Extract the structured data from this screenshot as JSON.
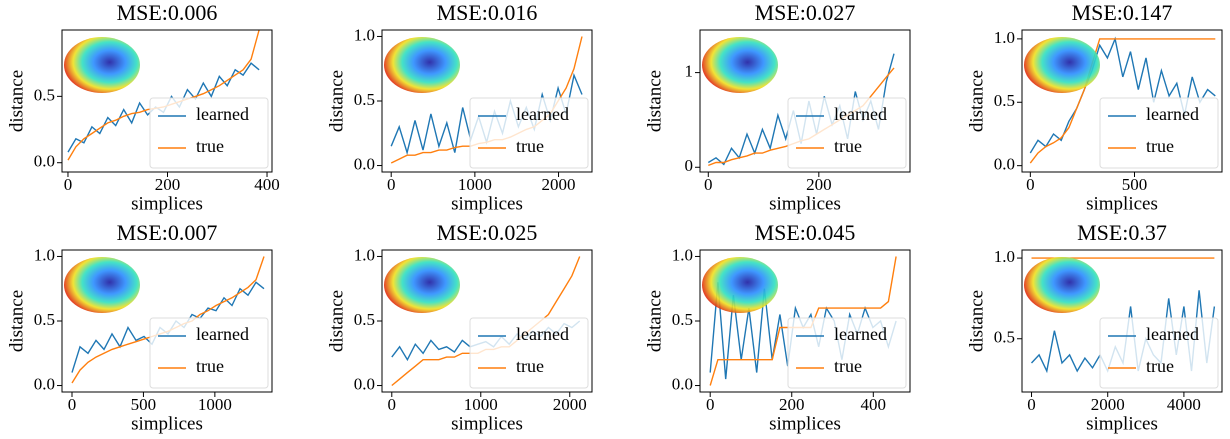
{
  "chart_data": [
    {
      "type": "line",
      "title": "MSE:0.006",
      "xlabel": "simplices",
      "ylabel": "distance",
      "legend": "lower right",
      "grid": false,
      "xlim": [
        -12,
        410
      ],
      "ylim": [
        -0.07,
        1.0
      ],
      "xticks": [
        0,
        200,
        400
      ],
      "yticks": [
        {
          "value": 0,
          "label": "0.0"
        },
        0.5
      ],
      "x": [
        0,
        16,
        32,
        48,
        64,
        80,
        96,
        112,
        128,
        144,
        160,
        176,
        192,
        208,
        224,
        240,
        256,
        272,
        288,
        304,
        320,
        336,
        352,
        368,
        384
      ],
      "series": [
        {
          "name": "learned",
          "color": "#1f77b4",
          "values": [
            0.08,
            0.18,
            0.15,
            0.27,
            0.22,
            0.34,
            0.28,
            0.4,
            0.3,
            0.45,
            0.36,
            0.42,
            0.38,
            0.5,
            0.42,
            0.55,
            0.48,
            0.6,
            0.5,
            0.65,
            0.58,
            0.7,
            0.66,
            0.75,
            0.7
          ]
        },
        {
          "name": "true",
          "color": "#ff7f0e",
          "values": [
            0.02,
            0.12,
            0.18,
            0.22,
            0.26,
            0.3,
            0.32,
            0.35,
            0.37,
            0.38,
            0.4,
            0.41,
            0.42,
            0.44,
            0.46,
            0.48,
            0.5,
            0.52,
            0.55,
            0.58,
            0.62,
            0.66,
            0.7,
            0.78,
            1.0
          ]
        }
      ]
    },
    {
      "type": "line",
      "title": "MSE:0.016",
      "xlabel": "simplices",
      "ylabel": "distance",
      "legend": "lower right",
      "grid": false,
      "xlim": [
        -110,
        2400
      ],
      "ylim": [
        -0.05,
        1.05
      ],
      "xticks": [
        0,
        1000,
        2000
      ],
      "yticks": [
        {
          "value": 0,
          "label": "0.0"
        },
        0.5,
        {
          "value": 1,
          "label": "1.0"
        }
      ],
      "x": [
        0,
        95,
        190,
        285,
        380,
        475,
        570,
        665,
        760,
        855,
        950,
        1045,
        1140,
        1235,
        1330,
        1425,
        1520,
        1615,
        1710,
        1805,
        1900,
        1995,
        2090,
        2185,
        2280
      ],
      "series": [
        {
          "name": "learned",
          "color": "#1f77b4",
          "values": [
            0.15,
            0.3,
            0.1,
            0.35,
            0.12,
            0.4,
            0.15,
            0.33,
            0.1,
            0.45,
            0.2,
            0.38,
            0.18,
            0.42,
            0.25,
            0.5,
            0.3,
            0.45,
            0.28,
            0.55,
            0.35,
            0.6,
            0.4,
            0.7,
            0.55
          ]
        },
        {
          "name": "true",
          "color": "#ff7f0e",
          "values": [
            0.02,
            0.05,
            0.08,
            0.08,
            0.1,
            0.1,
            0.12,
            0.12,
            0.14,
            0.15,
            0.15,
            0.17,
            0.18,
            0.2,
            0.2,
            0.22,
            0.25,
            0.28,
            0.3,
            0.35,
            0.4,
            0.5,
            0.6,
            0.75,
            1.0
          ]
        }
      ]
    },
    {
      "type": "line",
      "title": "MSE:0.027",
      "xlabel": "simplices",
      "ylabel": "distance",
      "legend": "lower right",
      "grid": false,
      "xlim": [
        -15,
        365
      ],
      "ylim": [
        -0.05,
        1.45
      ],
      "xticks": [
        0,
        200
      ],
      "yticks": [
        0,
        1
      ],
      "x": [
        0,
        14,
        28,
        42,
        56,
        70,
        84,
        98,
        112,
        126,
        140,
        154,
        168,
        182,
        196,
        210,
        224,
        238,
        252,
        266,
        280,
        294,
        308,
        322,
        336
      ],
      "series": [
        {
          "name": "learned",
          "color": "#1f77b4",
          "values": [
            0.05,
            0.1,
            0.03,
            0.2,
            0.1,
            0.35,
            0.15,
            0.4,
            0.2,
            0.55,
            0.3,
            0.6,
            0.25,
            0.7,
            0.35,
            0.75,
            0.45,
            0.65,
            0.3,
            0.8,
            0.5,
            0.7,
            0.4,
            0.9,
            1.2
          ]
        },
        {
          "name": "true",
          "color": "#ff7f0e",
          "values": [
            0.02,
            0.05,
            0.05,
            0.08,
            0.1,
            0.12,
            0.15,
            0.15,
            0.18,
            0.2,
            0.22,
            0.25,
            0.28,
            0.3,
            0.35,
            0.4,
            0.45,
            0.5,
            0.55,
            0.6,
            0.65,
            0.75,
            0.85,
            0.95,
            1.05
          ]
        }
      ]
    },
    {
      "type": "line",
      "title": "MSE:0.147",
      "xlabel": "simplices",
      "ylabel": "distance",
      "legend": "lower right",
      "grid": false,
      "xlim": [
        -40,
        920
      ],
      "ylim": [
        -0.05,
        1.07
      ],
      "xticks": [
        0,
        500
      ],
      "yticks": [
        {
          "value": 0,
          "label": "0.0"
        },
        0.5,
        {
          "value": 1,
          "label": "1.0"
        }
      ],
      "x": [
        0,
        37,
        74,
        111,
        148,
        185,
        222,
        259,
        296,
        333,
        370,
        407,
        444,
        481,
        518,
        555,
        592,
        629,
        666,
        703,
        740,
        777,
        814,
        851,
        888
      ],
      "series": [
        {
          "name": "learned",
          "color": "#1f77b4",
          "values": [
            0.1,
            0.2,
            0.15,
            0.25,
            0.2,
            0.35,
            0.45,
            0.6,
            0.75,
            0.95,
            0.85,
            1.0,
            0.7,
            0.9,
            0.6,
            0.85,
            0.5,
            0.75,
            0.55,
            0.65,
            0.4,
            0.7,
            0.5,
            0.6,
            0.55
          ]
        },
        {
          "name": "true",
          "color": "#ff7f0e",
          "values": [
            0.02,
            0.1,
            0.15,
            0.18,
            0.22,
            0.3,
            0.45,
            0.6,
            0.8,
            1.0,
            1.0,
            1.0,
            1.0,
            1.0,
            1.0,
            1.0,
            1.0,
            1.0,
            1.0,
            1.0,
            1.0,
            1.0,
            1.0,
            1.0,
            1.0
          ]
        }
      ]
    },
    {
      "type": "line",
      "title": "MSE:0.007",
      "xlabel": "simplices",
      "ylabel": "distance",
      "legend": "lower right",
      "grid": false,
      "xlim": [
        -70,
        1400
      ],
      "ylim": [
        -0.05,
        1.05
      ],
      "xticks": [
        0,
        500,
        1000
      ],
      "yticks": [
        {
          "value": 0,
          "label": "0.0"
        },
        0.5,
        {
          "value": 1,
          "label": "1.0"
        }
      ],
      "x": [
        0,
        56,
        112,
        168,
        224,
        280,
        336,
        392,
        448,
        504,
        560,
        616,
        672,
        728,
        784,
        840,
        896,
        952,
        1008,
        1064,
        1120,
        1176,
        1232,
        1288,
        1344
      ],
      "series": [
        {
          "name": "learned",
          "color": "#1f77b4",
          "values": [
            0.1,
            0.3,
            0.25,
            0.35,
            0.28,
            0.4,
            0.3,
            0.45,
            0.35,
            0.38,
            0.32,
            0.45,
            0.4,
            0.5,
            0.45,
            0.55,
            0.52,
            0.6,
            0.58,
            0.68,
            0.62,
            0.75,
            0.7,
            0.8,
            0.75
          ]
        },
        {
          "name": "true",
          "color": "#ff7f0e",
          "values": [
            0.02,
            0.12,
            0.18,
            0.22,
            0.25,
            0.28,
            0.3,
            0.32,
            0.34,
            0.36,
            0.38,
            0.4,
            0.42,
            0.45,
            0.48,
            0.5,
            0.55,
            0.58,
            0.62,
            0.65,
            0.68,
            0.72,
            0.76,
            0.82,
            1.0
          ]
        }
      ]
    },
    {
      "type": "line",
      "title": "MSE:0.025",
      "xlabel": "simplices",
      "ylabel": "distance",
      "legend": "lower right",
      "grid": false,
      "xlim": [
        -110,
        2250
      ],
      "ylim": [
        -0.05,
        1.05
      ],
      "xticks": [
        0,
        1000,
        2000
      ],
      "yticks": [
        {
          "value": 0,
          "label": "0.0"
        },
        0.5,
        {
          "value": 1,
          "label": "1.0"
        }
      ],
      "x": [
        0,
        88,
        176,
        264,
        352,
        440,
        528,
        616,
        704,
        792,
        880,
        968,
        1056,
        1144,
        1232,
        1320,
        1408,
        1496,
        1584,
        1672,
        1760,
        1848,
        1936,
        2024,
        2112
      ],
      "series": [
        {
          "name": "learned",
          "color": "#1f77b4",
          "values": [
            0.22,
            0.3,
            0.2,
            0.32,
            0.25,
            0.35,
            0.28,
            0.3,
            0.26,
            0.35,
            0.3,
            0.32,
            0.34,
            0.3,
            0.38,
            0.32,
            0.4,
            0.36,
            0.42,
            0.38,
            0.45,
            0.4,
            0.48,
            0.45,
            0.5
          ]
        },
        {
          "name": "true",
          "color": "#ff7f0e",
          "values": [
            0.0,
            0.05,
            0.1,
            0.15,
            0.2,
            0.2,
            0.2,
            0.22,
            0.22,
            0.25,
            0.25,
            0.25,
            0.28,
            0.28,
            0.3,
            0.3,
            0.35,
            0.4,
            0.45,
            0.5,
            0.55,
            0.65,
            0.75,
            0.85,
            1.0
          ]
        }
      ]
    },
    {
      "type": "line",
      "title": "MSE:0.045",
      "xlabel": "simplices",
      "ylabel": "distance",
      "legend": "lower right",
      "grid": false,
      "xlim": [
        -25,
        490
      ],
      "ylim": [
        -0.05,
        1.05
      ],
      "xticks": [
        0,
        200,
        400
      ],
      "yticks": [
        {
          "value": 0,
          "label": "0.0"
        },
        0.5,
        {
          "value": 1,
          "label": "1.0"
        }
      ],
      "x": [
        0,
        19,
        38,
        57,
        76,
        95,
        114,
        133,
        152,
        171,
        190,
        209,
        228,
        247,
        266,
        285,
        304,
        323,
        342,
        361,
        380,
        399,
        418,
        437,
        456
      ],
      "series": [
        {
          "name": "learned",
          "color": "#1f77b4",
          "values": [
            0.1,
            0.8,
            0.05,
            0.7,
            0.2,
            0.6,
            0.1,
            0.75,
            0.2,
            0.55,
            0.15,
            0.6,
            0.45,
            0.55,
            0.3,
            0.6,
            0.5,
            0.2,
            0.55,
            0.4,
            0.6,
            0.45,
            0.5,
            0.3,
            0.5
          ]
        },
        {
          "name": "true",
          "color": "#ff7f0e",
          "values": [
            0.0,
            0.2,
            0.2,
            0.2,
            0.2,
            0.2,
            0.2,
            0.2,
            0.2,
            0.45,
            0.45,
            0.45,
            0.45,
            0.45,
            0.6,
            0.6,
            0.6,
            0.6,
            0.6,
            0.6,
            0.6,
            0.6,
            0.6,
            0.65,
            1.0
          ]
        }
      ]
    },
    {
      "type": "line",
      "title": "MSE:0.37",
      "xlabel": "simplices",
      "ylabel": "distance",
      "legend": "lower right",
      "grid": false,
      "xlim": [
        -250,
        5000
      ],
      "ylim": [
        0.17,
        1.05
      ],
      "xticks": [
        0,
        2000,
        4000
      ],
      "yticks": [
        0.5,
        {
          "value": 1,
          "label": "1.0"
        }
      ],
      "x": [
        0,
        200,
        400,
        600,
        800,
        1000,
        1200,
        1400,
        1600,
        1800,
        2000,
        2200,
        2400,
        2600,
        2800,
        3000,
        3200,
        3400,
        3600,
        3800,
        4000,
        4200,
        4400,
        4600,
        4800
      ],
      "series": [
        {
          "name": "learned",
          "color": "#1f77b4",
          "values": [
            0.35,
            0.4,
            0.3,
            0.55,
            0.35,
            0.4,
            0.3,
            0.38,
            0.32,
            0.4,
            0.3,
            0.45,
            0.35,
            0.7,
            0.3,
            0.5,
            0.4,
            0.35,
            0.75,
            0.4,
            0.7,
            0.3,
            0.8,
            0.35,
            0.7
          ]
        },
        {
          "name": "true",
          "color": "#ff7f0e",
          "values": [
            1.0,
            1.0,
            1.0,
            1.0,
            1.0,
            1.0,
            1.0,
            1.0,
            1.0,
            1.0,
            1.0,
            1.0,
            1.0,
            1.0,
            1.0,
            1.0,
            1.0,
            1.0,
            1.0,
            1.0,
            1.0,
            1.0,
            1.0,
            1.0,
            1.0
          ]
        }
      ]
    }
  ]
}
